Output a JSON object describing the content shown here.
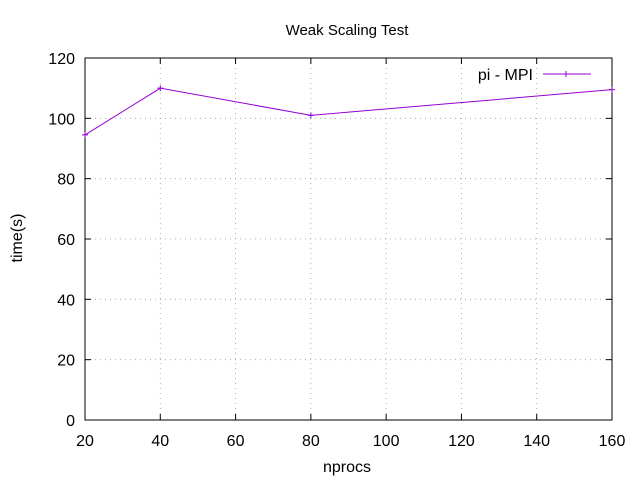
{
  "chart_data": {
    "type": "line",
    "title": "Weak Scaling Test",
    "xlabel": "nprocs",
    "ylabel": "time(s)",
    "xlim": [
      20,
      160
    ],
    "ylim": [
      0,
      120
    ],
    "xticks": [
      20,
      40,
      60,
      80,
      100,
      120,
      140,
      160
    ],
    "yticks": [
      0,
      20,
      40,
      60,
      80,
      100,
      120
    ],
    "grid": true,
    "legend_position": "top-right",
    "series": [
      {
        "name": "pi - MPI",
        "color": "#9400d3",
        "marker": "plus",
        "x": [
          20,
          40,
          80,
          160
        ],
        "y": [
          94.5,
          110,
          101,
          109.5
        ]
      }
    ]
  }
}
